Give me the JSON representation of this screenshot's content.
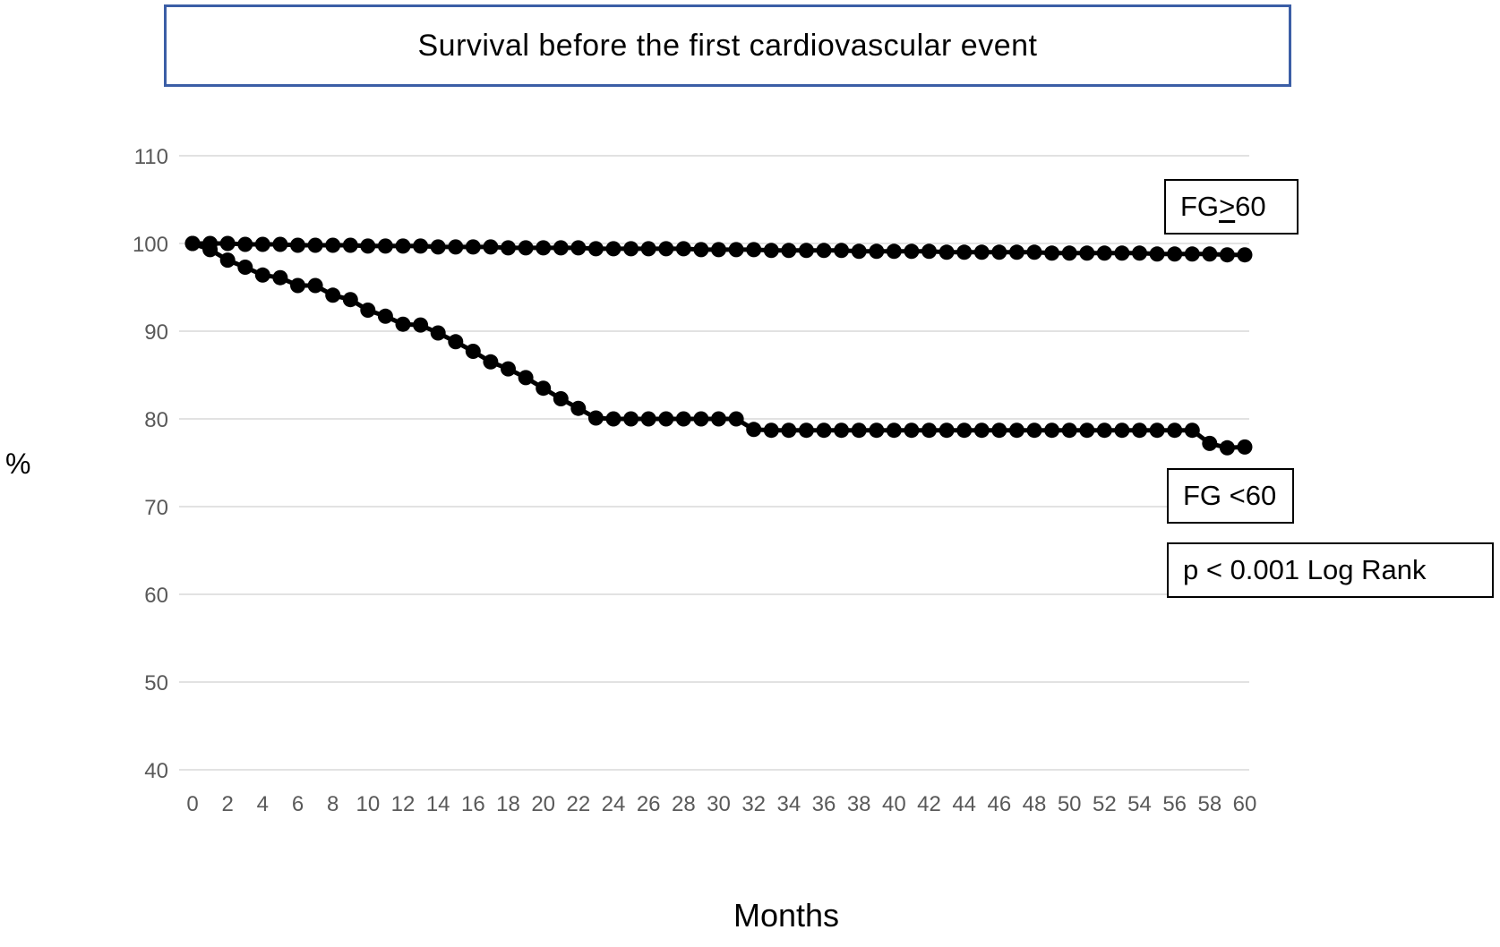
{
  "title": "Survival before the first cardiovascular event",
  "annotations": {
    "fg_ge60": {
      "prefix": "FG ",
      "symbol": ">",
      "suffix": "60"
    },
    "fg_lt60": "FG <60",
    "p_value": "p < 0.001 Log Rank"
  },
  "colors": {
    "title_box_border": "#3b5ea6",
    "series": "#000000",
    "gridline": "#d9d9d9",
    "tick_label": "#595959"
  },
  "chart_data": {
    "type": "line",
    "title": "Survival before the first cardiovascular event",
    "xlabel": "Months",
    "ylabel": "%",
    "xlim": [
      0,
      60
    ],
    "ylim": [
      40,
      110
    ],
    "grid": "horizontal",
    "legend_position": "none (boxed annotations near curves)",
    "marker": "filled-circle",
    "y_ticks": [
      110,
      100,
      90,
      80,
      70,
      60,
      50,
      40
    ],
    "x_ticks": [
      0,
      2,
      4,
      6,
      8,
      10,
      12,
      14,
      16,
      18,
      20,
      22,
      24,
      26,
      28,
      30,
      32,
      34,
      36,
      38,
      40,
      42,
      44,
      46,
      48,
      50,
      52,
      54,
      56,
      58,
      60
    ],
    "x": [
      0,
      1,
      2,
      3,
      4,
      5,
      6,
      7,
      8,
      9,
      10,
      11,
      12,
      13,
      14,
      15,
      16,
      17,
      18,
      19,
      20,
      21,
      22,
      23,
      24,
      25,
      26,
      27,
      28,
      29,
      30,
      31,
      32,
      33,
      34,
      35,
      36,
      37,
      38,
      39,
      40,
      41,
      42,
      43,
      44,
      45,
      46,
      47,
      48,
      49,
      50,
      51,
      52,
      53,
      54,
      55,
      56,
      57,
      58,
      59,
      60
    ],
    "series": [
      {
        "name": "FG >=60",
        "values": [
          100,
          100,
          100,
          99.9,
          99.9,
          99.9,
          99.8,
          99.8,
          99.8,
          99.8,
          99.7,
          99.7,
          99.7,
          99.7,
          99.6,
          99.6,
          99.6,
          99.6,
          99.5,
          99.5,
          99.5,
          99.5,
          99.5,
          99.4,
          99.4,
          99.4,
          99.4,
          99.4,
          99.4,
          99.3,
          99.3,
          99.3,
          99.3,
          99.2,
          99.2,
          99.2,
          99.2,
          99.2,
          99.1,
          99.1,
          99.1,
          99.1,
          99.1,
          99.0,
          99.0,
          99.0,
          99.0,
          99.0,
          99.0,
          98.9,
          98.9,
          98.9,
          98.9,
          98.9,
          98.9,
          98.8,
          98.8,
          98.8,
          98.8,
          98.7,
          98.7
        ]
      },
      {
        "name": "FG <60",
        "values": [
          100,
          99.3,
          98.1,
          97.3,
          96.4,
          96.1,
          95.2,
          95.2,
          94.1,
          93.6,
          92.4,
          91.7,
          90.8,
          90.7,
          89.8,
          88.8,
          87.7,
          86.5,
          85.7,
          84.7,
          83.5,
          82.3,
          81.2,
          80.1,
          80,
          80,
          80,
          80,
          80,
          80,
          80,
          80,
          78.8,
          78.7,
          78.7,
          78.7,
          78.7,
          78.7,
          78.7,
          78.7,
          78.7,
          78.7,
          78.7,
          78.7,
          78.7,
          78.7,
          78.7,
          78.7,
          78.7,
          78.7,
          78.7,
          78.7,
          78.7,
          78.7,
          78.7,
          78.7,
          78.7,
          78.7,
          77.2,
          76.7,
          76.8
        ]
      }
    ],
    "annotations": [
      "FG >60 (>= underlined)",
      "FG <60",
      "p < 0.001 Log Rank"
    ]
  }
}
